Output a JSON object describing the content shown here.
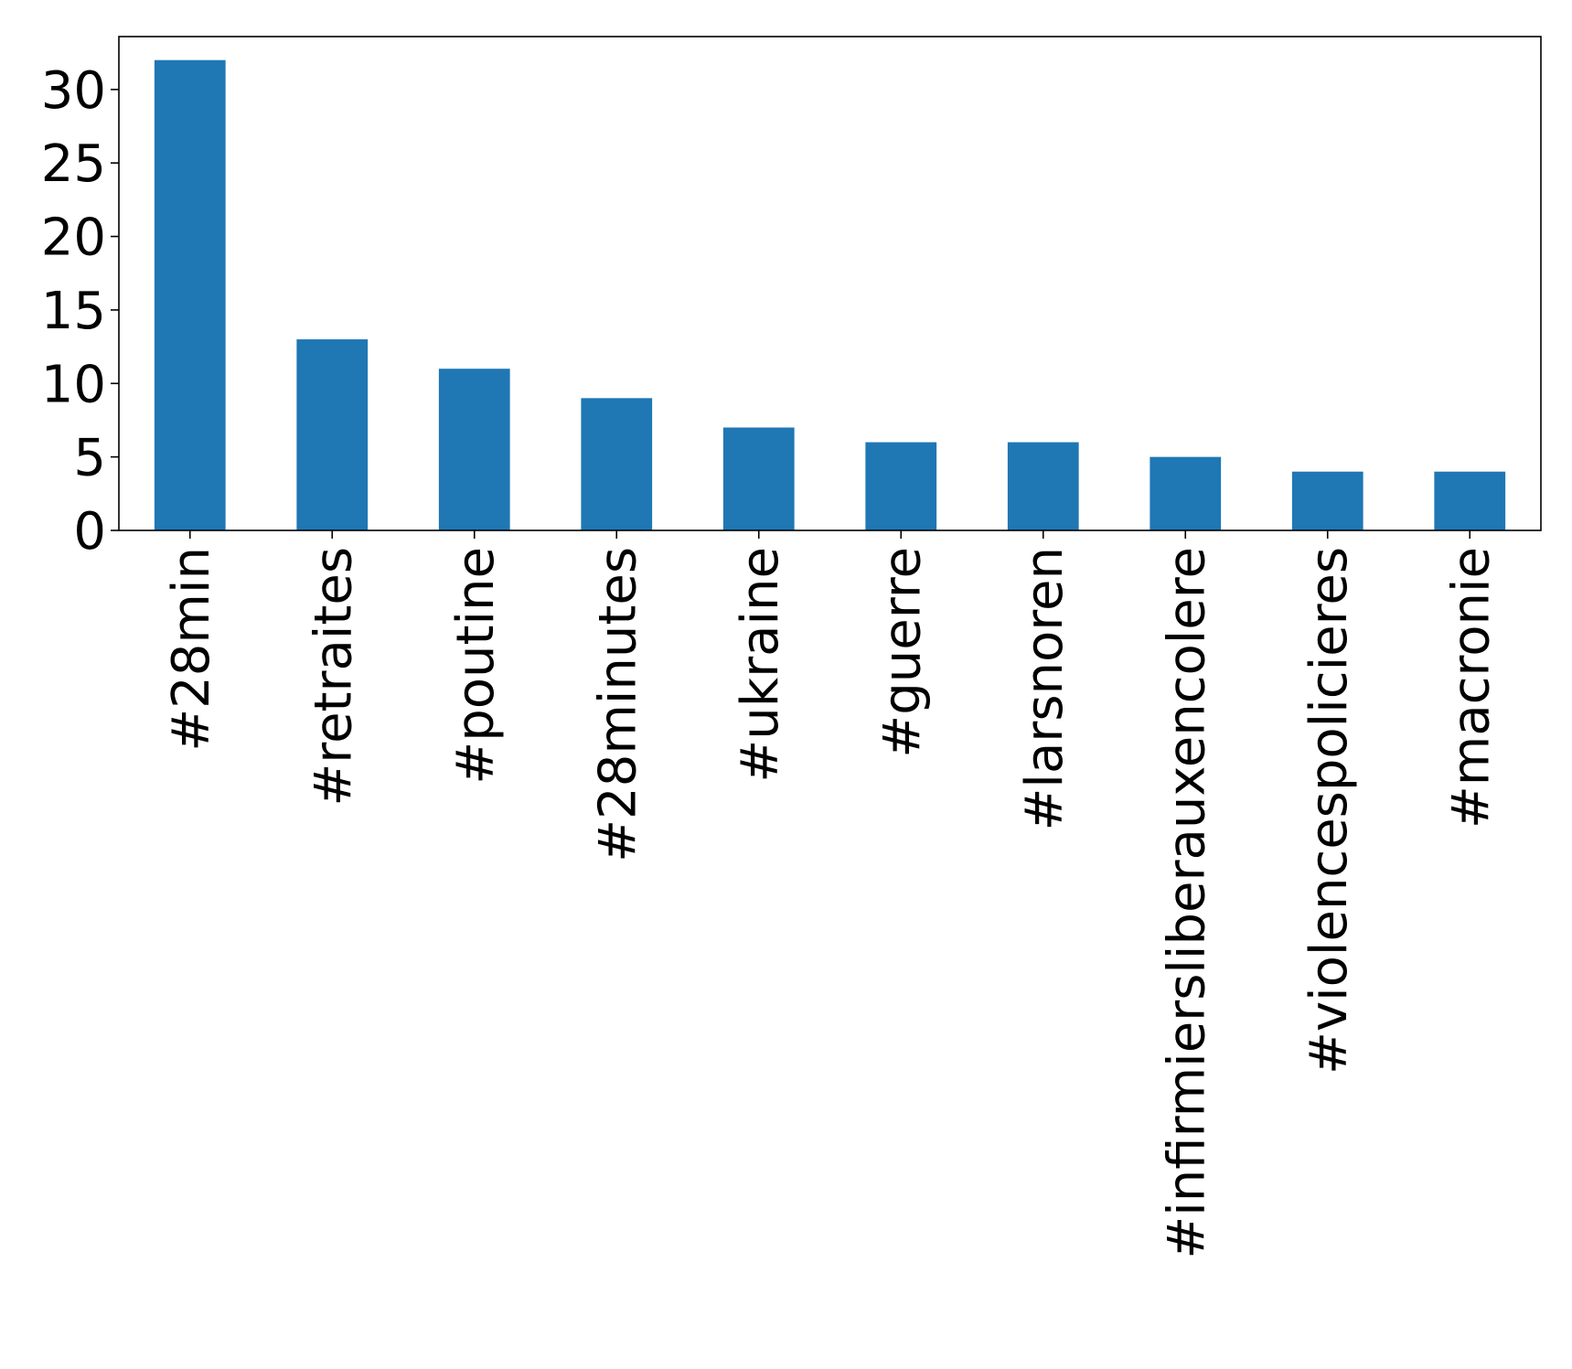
{
  "chart_data": {
    "type": "bar",
    "categories": [
      "#28min",
      "#retraites",
      "#poutine",
      "#28minutes",
      "#ukraine",
      "#guerre",
      "#larsnoren",
      "#infirmiersliberauxencolere",
      "#violencespolicieres",
      "#macronie"
    ],
    "values": [
      32,
      13,
      11,
      9,
      7,
      6,
      6,
      5,
      4,
      4
    ],
    "yticks": [
      "0",
      "5",
      "10",
      "15",
      "20",
      "25",
      "30"
    ],
    "ylim": [
      0,
      33.6
    ],
    "title": "",
    "xlabel": "",
    "ylabel": "",
    "grid": false,
    "legend": "none",
    "bar_color": "#1f77b4",
    "frame_color": "#000000"
  }
}
